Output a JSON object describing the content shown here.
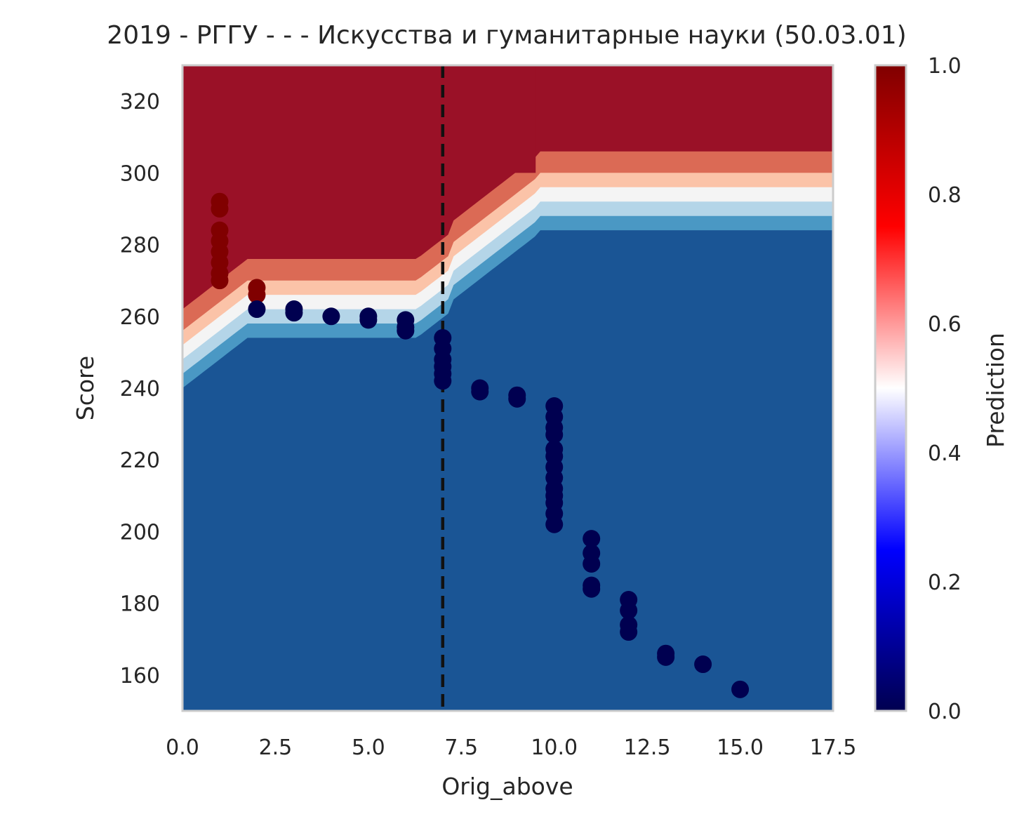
{
  "chart_data": {
    "type": "scatter",
    "title": "2019 - РГГУ - - - Искусства и гуманитарные науки (50.03.01)",
    "xlabel": "Orig_above",
    "ylabel": "Score",
    "xlim": [
      0,
      17.5
    ],
    "ylim": [
      150,
      330
    ],
    "x_ticks": [
      "0.0",
      "2.5",
      "5.0",
      "7.5",
      "10.0",
      "12.5",
      "15.0",
      "17.5"
    ],
    "y_ticks": [
      "160",
      "180",
      "200",
      "220",
      "240",
      "260",
      "280",
      "300",
      "320"
    ],
    "grid": false,
    "vline": {
      "x": 7,
      "style": "dashed",
      "color": "#111111"
    },
    "colorbar": {
      "label": "Prediction",
      "ticks": [
        "0.0",
        "0.2",
        "0.4",
        "0.6",
        "0.8",
        "1.0"
      ],
      "range": [
        0,
        1
      ],
      "colormap": "seismic"
    },
    "background": {
      "description_colors": [
        "#1a5595",
        "#4a98c4",
        "#b4d5e8",
        "#f4f4f4",
        "#fbc3a8",
        "#db6a55",
        "#9a1127"
      ],
      "levels": [
        0.05,
        0.2,
        0.35,
        0.5,
        0.65,
        0.8,
        0.95
      ]
    },
    "series": [
      {
        "values": [
          {
            "x": 1,
            "y": 292,
            "p": 1
          },
          {
            "x": 1,
            "y": 290,
            "p": 1
          },
          {
            "x": 1,
            "y": 284,
            "p": 1
          },
          {
            "x": 1,
            "y": 281,
            "p": 1
          },
          {
            "x": 1,
            "y": 278,
            "p": 1
          },
          {
            "x": 1,
            "y": 275,
            "p": 1
          },
          {
            "x": 1,
            "y": 272,
            "p": 1
          },
          {
            "x": 1,
            "y": 270,
            "p": 1
          },
          {
            "x": 2,
            "y": 268,
            "p": 1
          },
          {
            "x": 2,
            "y": 266,
            "p": 1
          },
          {
            "x": 2,
            "y": 262,
            "p": 0
          },
          {
            "x": 3,
            "y": 262,
            "p": 0
          },
          {
            "x": 3,
            "y": 261,
            "p": 0
          },
          {
            "x": 4,
            "y": 260,
            "p": 0
          },
          {
            "x": 5,
            "y": 260,
            "p": 0
          },
          {
            "x": 5,
            "y": 259,
            "p": 0
          },
          {
            "x": 6,
            "y": 259,
            "p": 0
          },
          {
            "x": 6,
            "y": 257,
            "p": 0
          },
          {
            "x": 6,
            "y": 256,
            "p": 0
          },
          {
            "x": 7,
            "y": 254,
            "p": 0
          },
          {
            "x": 7,
            "y": 251,
            "p": 0
          },
          {
            "x": 7,
            "y": 248,
            "p": 0
          },
          {
            "x": 7,
            "y": 246,
            "p": 0
          },
          {
            "x": 7,
            "y": 244,
            "p": 0
          },
          {
            "x": 7,
            "y": 242,
            "p": 0
          },
          {
            "x": 8,
            "y": 240,
            "p": 0
          },
          {
            "x": 8,
            "y": 239,
            "p": 0
          },
          {
            "x": 9,
            "y": 238,
            "p": 0
          },
          {
            "x": 9,
            "y": 237,
            "p": 0
          },
          {
            "x": 10,
            "y": 235,
            "p": 0
          },
          {
            "x": 10,
            "y": 232,
            "p": 0
          },
          {
            "x": 10,
            "y": 229,
            "p": 0
          },
          {
            "x": 10,
            "y": 227,
            "p": 0
          },
          {
            "x": 10,
            "y": 223,
            "p": 0
          },
          {
            "x": 10,
            "y": 221,
            "p": 0
          },
          {
            "x": 10,
            "y": 218,
            "p": 0
          },
          {
            "x": 10,
            "y": 215,
            "p": 0
          },
          {
            "x": 10,
            "y": 212,
            "p": 0
          },
          {
            "x": 10,
            "y": 210,
            "p": 0
          },
          {
            "x": 10,
            "y": 208,
            "p": 0
          },
          {
            "x": 10,
            "y": 205,
            "p": 0
          },
          {
            "x": 10,
            "y": 202,
            "p": 0
          },
          {
            "x": 11,
            "y": 198,
            "p": 0
          },
          {
            "x": 11,
            "y": 194,
            "p": 0
          },
          {
            "x": 11,
            "y": 191,
            "p": 0
          },
          {
            "x": 11,
            "y": 185,
            "p": 0
          },
          {
            "x": 11,
            "y": 184,
            "p": 0
          },
          {
            "x": 12,
            "y": 181,
            "p": 0
          },
          {
            "x": 12,
            "y": 178,
            "p": 0
          },
          {
            "x": 12,
            "y": 174,
            "p": 0
          },
          {
            "x": 12,
            "y": 172,
            "p": 0
          },
          {
            "x": 13,
            "y": 166,
            "p": 0
          },
          {
            "x": 13,
            "y": 165,
            "p": 0
          },
          {
            "x": 14,
            "y": 163,
            "p": 0
          },
          {
            "x": 15,
            "y": 156,
            "p": 0
          }
        ]
      }
    ]
  }
}
